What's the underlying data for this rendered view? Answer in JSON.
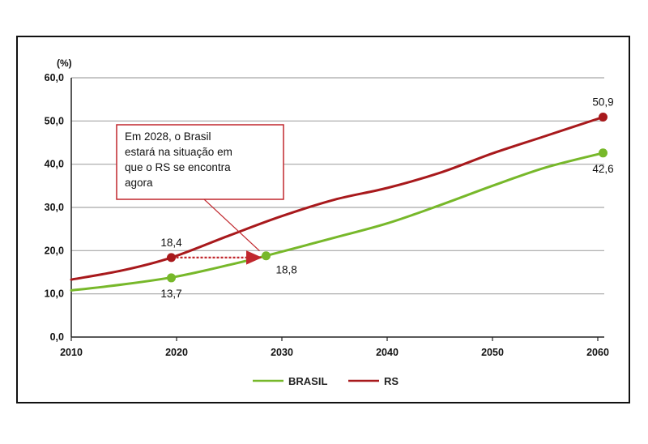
{
  "chart_data": {
    "type": "line",
    "y_unit_label": "(%)",
    "x": [
      2010,
      2020,
      2030,
      2040,
      2050,
      2060
    ],
    "y_ticks": [
      "0,0",
      "10,0",
      "20,0",
      "30,0",
      "40,0",
      "50,0",
      "60,0"
    ],
    "x_ticks": [
      "2010",
      "2020",
      "2030",
      "2040",
      "2050",
      "2060"
    ],
    "ylim": [
      0,
      60
    ],
    "xlim": [
      2010,
      2061
    ],
    "grid": "horizontal",
    "legend_position": "bottom-center",
    "series": [
      {
        "name": "BRASIL",
        "color": "#77b82a",
        "points": [
          [
            2010,
            10.8
          ],
          [
            2015,
            12.2
          ],
          [
            2020,
            14.0
          ],
          [
            2025,
            16.7
          ],
          [
            2028.5,
            18.8
          ],
          [
            2035,
            23.0
          ],
          [
            2040,
            26.3
          ],
          [
            2045,
            30.5
          ],
          [
            2050,
            35.0
          ],
          [
            2055,
            39.2
          ],
          [
            2060.5,
            42.6
          ]
        ],
        "markers": [
          [
            2019.5,
            13.7
          ],
          [
            2028.5,
            18.8
          ],
          [
            2060.5,
            42.6
          ]
        ]
      },
      {
        "name": "RS",
        "color": "#a8191c",
        "points": [
          [
            2010,
            13.3
          ],
          [
            2015,
            15.5
          ],
          [
            2019.5,
            18.4
          ],
          [
            2025,
            23.5
          ],
          [
            2030,
            28.0
          ],
          [
            2035,
            31.8
          ],
          [
            2040,
            34.5
          ],
          [
            2045,
            38.0
          ],
          [
            2050,
            42.5
          ],
          [
            2055,
            46.5
          ],
          [
            2060.5,
            50.9
          ]
        ],
        "markers": [
          [
            2019.5,
            18.4
          ],
          [
            2060.5,
            50.9
          ]
        ]
      }
    ],
    "data_labels": [
      {
        "text": "18,4",
        "x": 2019.5,
        "y": 18.4,
        "pos": "above"
      },
      {
        "text": "13,7",
        "x": 2019.5,
        "y": 13.7,
        "pos": "below"
      },
      {
        "text": "18,8",
        "x": 2028.5,
        "y": 18.8,
        "pos": "below-right"
      },
      {
        "text": "50,9",
        "x": 2060.5,
        "y": 50.9,
        "pos": "above"
      },
      {
        "text": "42,6",
        "x": 2060.5,
        "y": 42.6,
        "pos": "below"
      }
    ],
    "annotation": {
      "lines": [
        "Em 2028, o Brasil",
        "estará na situação em",
        "que o RS se encontra",
        "agora"
      ],
      "arrow_from": [
        2019.5,
        18.4
      ],
      "arrow_to": [
        2028.5,
        18.8
      ]
    }
  }
}
